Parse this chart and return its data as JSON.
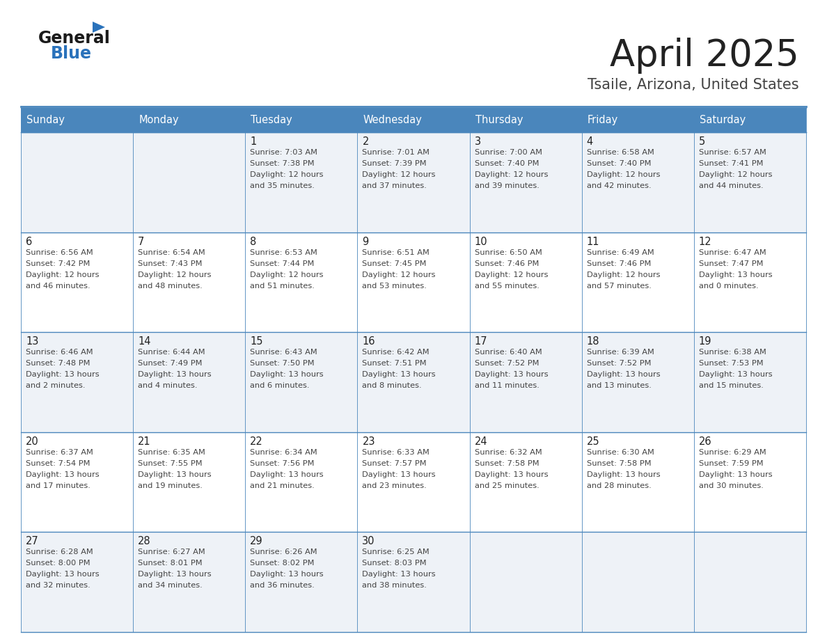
{
  "title": "April 2025",
  "subtitle": "Tsaile, Arizona, United States",
  "days_of_week": [
    "Sunday",
    "Monday",
    "Tuesday",
    "Wednesday",
    "Thursday",
    "Friday",
    "Saturday"
  ],
  "header_bg": "#4a86bc",
  "header_text": "#ffffff",
  "row_bg_light": "#eef2f7",
  "row_bg_white": "#ffffff",
  "cell_border": "#4a86bc",
  "title_color": "#222222",
  "subtitle_color": "#444444",
  "day_number_color": "#222222",
  "detail_color": "#444444",
  "logo_general_color": "#1a1a1a",
  "logo_blue_color": "#2a72bb",
  "logo_triangle_color": "#2a72bb",
  "calendar_data": [
    [
      {
        "day": "",
        "lines": []
      },
      {
        "day": "",
        "lines": []
      },
      {
        "day": "1",
        "lines": [
          "Sunrise: 7:03 AM",
          "Sunset: 7:38 PM",
          "Daylight: 12 hours",
          "and 35 minutes."
        ]
      },
      {
        "day": "2",
        "lines": [
          "Sunrise: 7:01 AM",
          "Sunset: 7:39 PM",
          "Daylight: 12 hours",
          "and 37 minutes."
        ]
      },
      {
        "day": "3",
        "lines": [
          "Sunrise: 7:00 AM",
          "Sunset: 7:40 PM",
          "Daylight: 12 hours",
          "and 39 minutes."
        ]
      },
      {
        "day": "4",
        "lines": [
          "Sunrise: 6:58 AM",
          "Sunset: 7:40 PM",
          "Daylight: 12 hours",
          "and 42 minutes."
        ]
      },
      {
        "day": "5",
        "lines": [
          "Sunrise: 6:57 AM",
          "Sunset: 7:41 PM",
          "Daylight: 12 hours",
          "and 44 minutes."
        ]
      }
    ],
    [
      {
        "day": "6",
        "lines": [
          "Sunrise: 6:56 AM",
          "Sunset: 7:42 PM",
          "Daylight: 12 hours",
          "and 46 minutes."
        ]
      },
      {
        "day": "7",
        "lines": [
          "Sunrise: 6:54 AM",
          "Sunset: 7:43 PM",
          "Daylight: 12 hours",
          "and 48 minutes."
        ]
      },
      {
        "day": "8",
        "lines": [
          "Sunrise: 6:53 AM",
          "Sunset: 7:44 PM",
          "Daylight: 12 hours",
          "and 51 minutes."
        ]
      },
      {
        "day": "9",
        "lines": [
          "Sunrise: 6:51 AM",
          "Sunset: 7:45 PM",
          "Daylight: 12 hours",
          "and 53 minutes."
        ]
      },
      {
        "day": "10",
        "lines": [
          "Sunrise: 6:50 AM",
          "Sunset: 7:46 PM",
          "Daylight: 12 hours",
          "and 55 minutes."
        ]
      },
      {
        "day": "11",
        "lines": [
          "Sunrise: 6:49 AM",
          "Sunset: 7:46 PM",
          "Daylight: 12 hours",
          "and 57 minutes."
        ]
      },
      {
        "day": "12",
        "lines": [
          "Sunrise: 6:47 AM",
          "Sunset: 7:47 PM",
          "Daylight: 13 hours",
          "and 0 minutes."
        ]
      }
    ],
    [
      {
        "day": "13",
        "lines": [
          "Sunrise: 6:46 AM",
          "Sunset: 7:48 PM",
          "Daylight: 13 hours",
          "and 2 minutes."
        ]
      },
      {
        "day": "14",
        "lines": [
          "Sunrise: 6:44 AM",
          "Sunset: 7:49 PM",
          "Daylight: 13 hours",
          "and 4 minutes."
        ]
      },
      {
        "day": "15",
        "lines": [
          "Sunrise: 6:43 AM",
          "Sunset: 7:50 PM",
          "Daylight: 13 hours",
          "and 6 minutes."
        ]
      },
      {
        "day": "16",
        "lines": [
          "Sunrise: 6:42 AM",
          "Sunset: 7:51 PM",
          "Daylight: 13 hours",
          "and 8 minutes."
        ]
      },
      {
        "day": "17",
        "lines": [
          "Sunrise: 6:40 AM",
          "Sunset: 7:52 PM",
          "Daylight: 13 hours",
          "and 11 minutes."
        ]
      },
      {
        "day": "18",
        "lines": [
          "Sunrise: 6:39 AM",
          "Sunset: 7:52 PM",
          "Daylight: 13 hours",
          "and 13 minutes."
        ]
      },
      {
        "day": "19",
        "lines": [
          "Sunrise: 6:38 AM",
          "Sunset: 7:53 PM",
          "Daylight: 13 hours",
          "and 15 minutes."
        ]
      }
    ],
    [
      {
        "day": "20",
        "lines": [
          "Sunrise: 6:37 AM",
          "Sunset: 7:54 PM",
          "Daylight: 13 hours",
          "and 17 minutes."
        ]
      },
      {
        "day": "21",
        "lines": [
          "Sunrise: 6:35 AM",
          "Sunset: 7:55 PM",
          "Daylight: 13 hours",
          "and 19 minutes."
        ]
      },
      {
        "day": "22",
        "lines": [
          "Sunrise: 6:34 AM",
          "Sunset: 7:56 PM",
          "Daylight: 13 hours",
          "and 21 minutes."
        ]
      },
      {
        "day": "23",
        "lines": [
          "Sunrise: 6:33 AM",
          "Sunset: 7:57 PM",
          "Daylight: 13 hours",
          "and 23 minutes."
        ]
      },
      {
        "day": "24",
        "lines": [
          "Sunrise: 6:32 AM",
          "Sunset: 7:58 PM",
          "Daylight: 13 hours",
          "and 25 minutes."
        ]
      },
      {
        "day": "25",
        "lines": [
          "Sunrise: 6:30 AM",
          "Sunset: 7:58 PM",
          "Daylight: 13 hours",
          "and 28 minutes."
        ]
      },
      {
        "day": "26",
        "lines": [
          "Sunrise: 6:29 AM",
          "Sunset: 7:59 PM",
          "Daylight: 13 hours",
          "and 30 minutes."
        ]
      }
    ],
    [
      {
        "day": "27",
        "lines": [
          "Sunrise: 6:28 AM",
          "Sunset: 8:00 PM",
          "Daylight: 13 hours",
          "and 32 minutes."
        ]
      },
      {
        "day": "28",
        "lines": [
          "Sunrise: 6:27 AM",
          "Sunset: 8:01 PM",
          "Daylight: 13 hours",
          "and 34 minutes."
        ]
      },
      {
        "day": "29",
        "lines": [
          "Sunrise: 6:26 AM",
          "Sunset: 8:02 PM",
          "Daylight: 13 hours",
          "and 36 minutes."
        ]
      },
      {
        "day": "30",
        "lines": [
          "Sunrise: 6:25 AM",
          "Sunset: 8:03 PM",
          "Daylight: 13 hours",
          "and 38 minutes."
        ]
      },
      {
        "day": "",
        "lines": []
      },
      {
        "day": "",
        "lines": []
      },
      {
        "day": "",
        "lines": []
      }
    ]
  ]
}
